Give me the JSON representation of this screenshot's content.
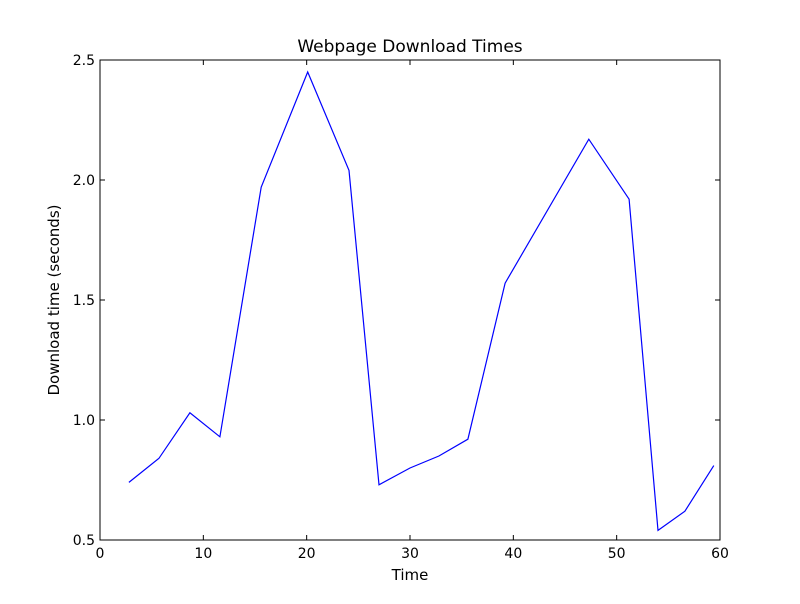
{
  "chart_data": {
    "type": "line",
    "title": "Webpage Download Times",
    "xlabel": "Time",
    "ylabel": "Download time (seconds)",
    "xlim": [
      0,
      60
    ],
    "ylim": [
      0.5,
      2.5
    ],
    "xticks": [
      0,
      10,
      20,
      30,
      40,
      50,
      60
    ],
    "xtick_labels": [
      "0",
      "10",
      "20",
      "30",
      "40",
      "50",
      "60"
    ],
    "yticks": [
      0.5,
      1.0,
      1.5,
      2.0,
      2.5
    ],
    "ytick_labels": [
      "0.5",
      "1.0",
      "1.5",
      "2.0",
      "2.5"
    ],
    "grid": false,
    "legend": "none",
    "series": [
      {
        "color": "#0000ff",
        "x": [
          2.8,
          5.7,
          8.7,
          11.6,
          15.6,
          20.1,
          24.1,
          27.0,
          30.0,
          32.8,
          35.6,
          39.2,
          47.3,
          51.2,
          54.0,
          56.6,
          59.4
        ],
        "y": [
          0.74,
          0.84,
          1.03,
          0.93,
          1.97,
          2.45,
          2.04,
          0.73,
          0.8,
          0.85,
          0.92,
          1.57,
          2.17,
          1.92,
          0.54,
          0.62,
          0.81
        ]
      }
    ]
  }
}
